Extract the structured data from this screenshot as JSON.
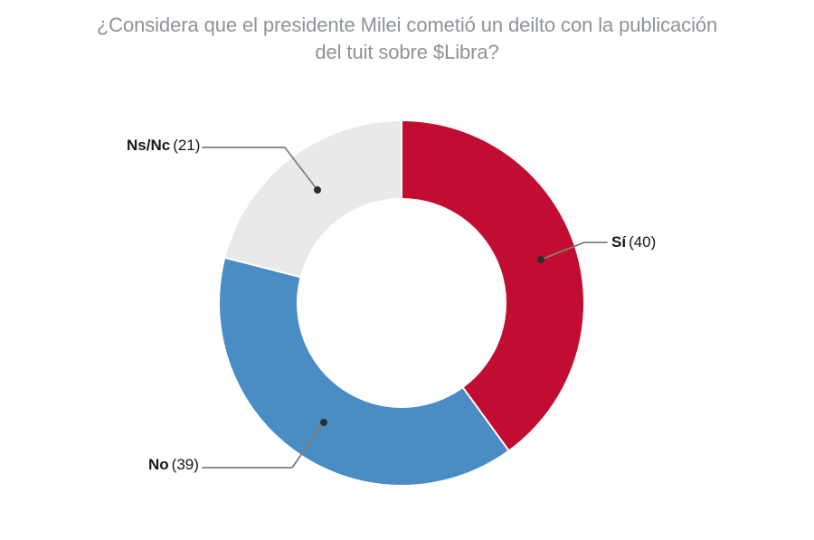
{
  "title": {
    "line1": "¿Considera que el presidente Milei cometió un deilto con la publicación",
    "line2": "del tuit sobre $Libra?",
    "color": "#8d929b"
  },
  "chart_data": {
    "type": "pie",
    "subtype": "donut",
    "title": "¿Considera que el presidente Milei cometió un deilto con la publicación del tuit sobre $Libra?",
    "categories": [
      "Sí",
      "No",
      "Ns/Nc"
    ],
    "values": [
      40,
      39,
      21
    ],
    "total": 100,
    "start_angle": "top",
    "direction": "clockwise",
    "legend_position": "callouts",
    "hole_color": "#ffffff",
    "segments": [
      {
        "label": "Sí",
        "value": 40,
        "display": "(40)",
        "color": "#c20d32"
      },
      {
        "label": "No",
        "value": 39,
        "display": "(39)",
        "color": "#4a8cc4"
      },
      {
        "label": "Ns/Nc",
        "value": 21,
        "display": "(21)",
        "color": "#e9e9e9"
      }
    ]
  },
  "colors": {
    "background": "#ffffff",
    "leader_line": "#7e7e7e",
    "leader_dot": "#2d2d2d",
    "label_text": "#161616",
    "segment_separator": "#ffffff"
  }
}
